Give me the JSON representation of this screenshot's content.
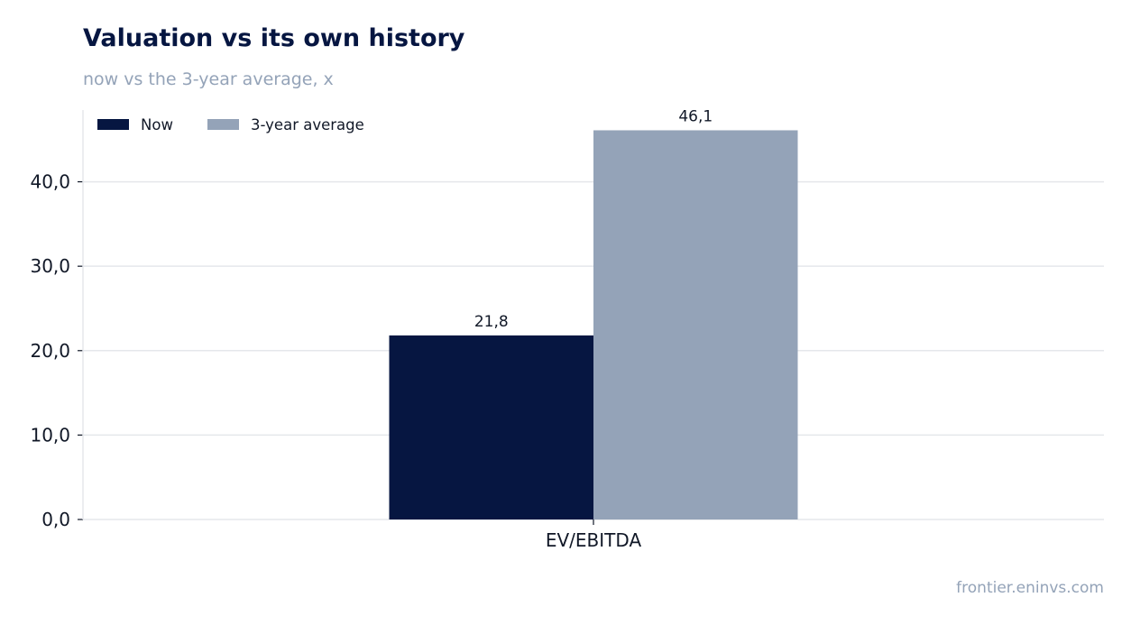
{
  "title": "Valuation vs its own history",
  "subtitle": "now vs the 3-year average, x",
  "footer": "frontier.eninvs.com",
  "colors": {
    "now": "#061641",
    "average": "#94a3b8",
    "grid": "#e5e7eb",
    "text": "#111827"
  },
  "chart_data": {
    "type": "bar",
    "categories": [
      "EV/EBITDA"
    ],
    "series": [
      {
        "name": "Now",
        "values": [
          21.8
        ],
        "value_labels": [
          "21,8"
        ]
      },
      {
        "name": "3-year average",
        "values": [
          46.1
        ],
        "value_labels": [
          "46,1"
        ]
      }
    ],
    "ylim": [
      0,
      48.5
    ],
    "yticks": [
      0,
      10,
      20,
      30,
      40
    ],
    "ytick_labels": [
      "0,0",
      "10,0",
      "20,0",
      "30,0",
      "40,0"
    ],
    "grid": true,
    "legend": "top-left"
  }
}
